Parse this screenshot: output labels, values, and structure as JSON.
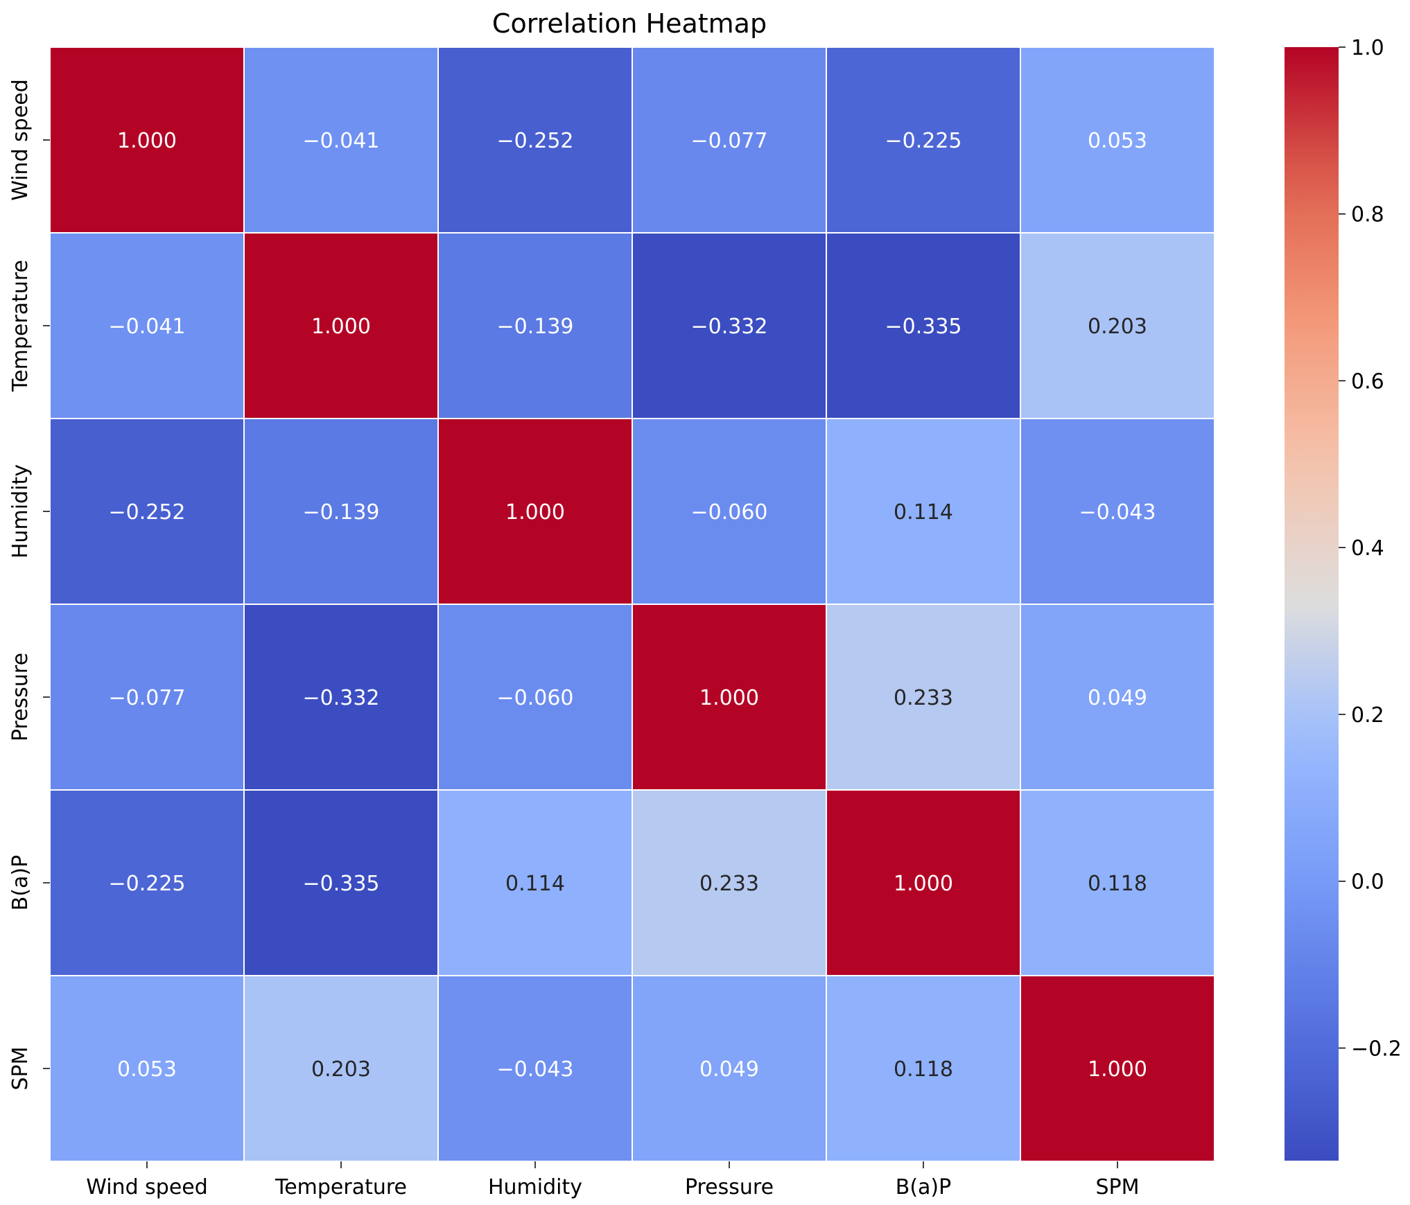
{
  "chart_data": {
    "type": "heatmap",
    "title": "Correlation Heatmap",
    "xlabel": "",
    "ylabel": "",
    "x_labels": [
      "Wind speed",
      "Temperature",
      "Humidity",
      "Pressure",
      "B(a)P",
      "SPM"
    ],
    "y_labels": [
      "Wind speed",
      "Temperature",
      "Humidity",
      "Pressure",
      "B(a)P",
      "SPM"
    ],
    "values": [
      [
        1.0,
        -0.041,
        -0.252,
        -0.077,
        -0.225,
        0.053
      ],
      [
        -0.041,
        1.0,
        -0.139,
        -0.332,
        -0.335,
        0.203
      ],
      [
        -0.252,
        -0.139,
        1.0,
        -0.06,
        0.114,
        -0.043
      ],
      [
        -0.077,
        -0.332,
        -0.06,
        1.0,
        0.233,
        0.049
      ],
      [
        -0.225,
        -0.335,
        0.114,
        0.233,
        1.0,
        0.118
      ],
      [
        0.053,
        0.203,
        -0.043,
        0.049,
        0.118,
        1.0
      ]
    ],
    "cell_labels": [
      [
        "1.000",
        "−0.041",
        "−0.252",
        "−0.077",
        "−0.225",
        "0.053"
      ],
      [
        "−0.041",
        "1.000",
        "−0.139",
        "−0.332",
        "−0.335",
        "0.203"
      ],
      [
        "−0.252",
        "−0.139",
        "1.000",
        "−0.060",
        "0.114",
        "−0.043"
      ],
      [
        "−0.077",
        "−0.332",
        "−0.060",
        "1.000",
        "0.233",
        "0.049"
      ],
      [
        "−0.225",
        "−0.335",
        "0.114",
        "0.233",
        "1.000",
        "0.118"
      ],
      [
        "0.053",
        "0.203",
        "−0.043",
        "0.049",
        "0.118",
        "1.000"
      ]
    ],
    "colormap": "coolwarm",
    "color_range": [
      -0.335,
      1.0
    ],
    "colorbar": {
      "ticks": [
        1.0,
        0.8,
        0.6,
        0.4,
        0.2,
        0.0,
        -0.2
      ],
      "tick_labels": [
        "1.0",
        "0.8",
        "0.6",
        "0.4",
        "0.2",
        "0.0",
        "−0.2"
      ],
      "placement": "right"
    },
    "grid": false
  }
}
